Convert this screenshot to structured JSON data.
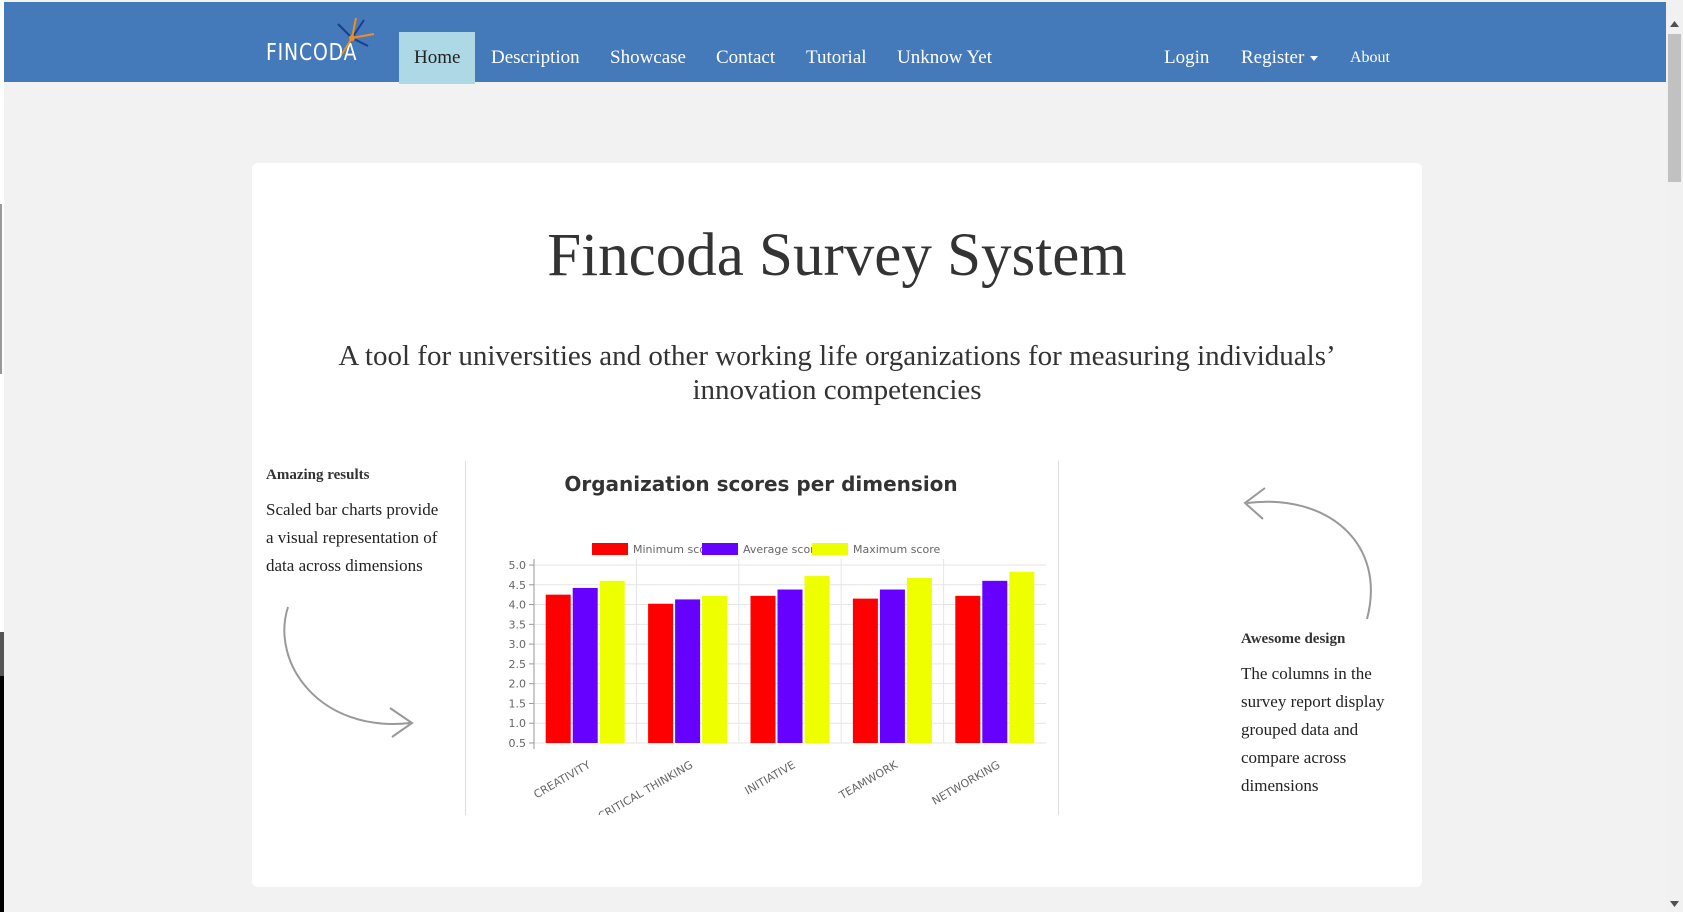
{
  "brand": {
    "logo_text": "FINCODA"
  },
  "nav": {
    "left": [
      {
        "label": "Home"
      },
      {
        "label": "Description"
      },
      {
        "label": "Showcase"
      },
      {
        "label": "Contact"
      },
      {
        "label": "Tutorial"
      },
      {
        "label": "Unknow Yet"
      }
    ],
    "right": [
      {
        "label": "Login"
      },
      {
        "label": "Register"
      },
      {
        "label": "About"
      }
    ]
  },
  "hero": {
    "title": "Fincoda Survey System",
    "subtitle_line1": "A tool for universities and other working life organizations for measuring individuals’",
    "subtitle_line2": "innovation competencies"
  },
  "left_feature": {
    "heading": "Amazing results",
    "line1": "Scaled bar charts provide",
    "line2": "a visual representation of",
    "line3": "data across dimensions"
  },
  "right_feature": {
    "heading": "Awesome design",
    "line1": "The columns in the",
    "line2": "survey report display",
    "line3": "grouped data and",
    "line4": "compare across",
    "line5": "dimensions"
  },
  "colors": {
    "navbar": "#4479ba",
    "active_tab": "#add8e6",
    "min": "#ff0000",
    "avg": "#6600ff",
    "max": "#eeff00"
  },
  "chart_data": {
    "type": "bar",
    "title": "Organization scores per dimension",
    "categories": [
      "CREATIVITY",
      "CRITICAL THINKING",
      "INITIATIVE",
      "TEAMWORK",
      "NETWORKING"
    ],
    "series": [
      {
        "name": "Minimum score",
        "color": "#ff0000",
        "values": [
          4.25,
          4.02,
          4.22,
          4.15,
          4.22
        ]
      },
      {
        "name": "Average score",
        "color": "#6600ff",
        "values": [
          4.42,
          4.13,
          4.38,
          4.38,
          4.6
        ]
      },
      {
        "name": "Maximum score",
        "color": "#eeff00",
        "values": [
          4.6,
          4.22,
          4.72,
          4.67,
          4.83
        ]
      }
    ],
    "y_ticks": [
      "0.5",
      "1.0",
      "1.5",
      "2.0",
      "2.5",
      "3.0",
      "3.5",
      "4.0",
      "4.5",
      "5.0"
    ],
    "ylim": [
      0.5,
      5.0
    ],
    "grid": true,
    "legend": "top"
  }
}
